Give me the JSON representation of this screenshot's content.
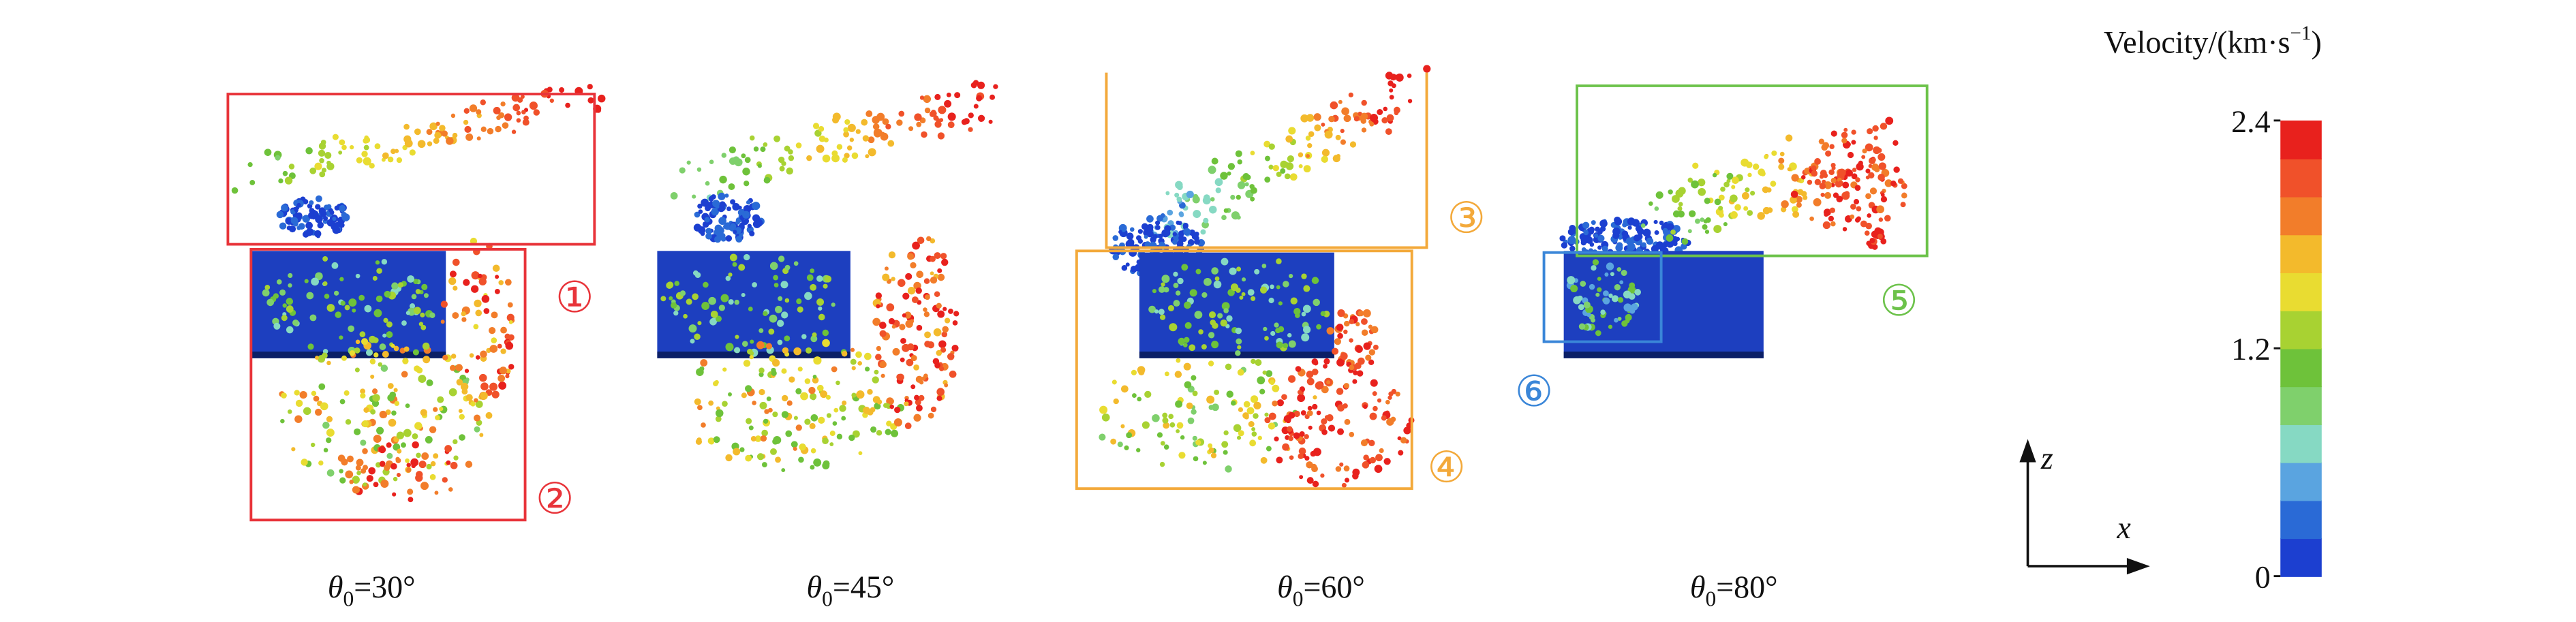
{
  "panels": [
    {
      "title": {
        "symbol": "θ",
        "subscript": "0",
        "rest": "=30°"
      },
      "regions": [
        {
          "label": "①",
          "color": "#e8343a"
        },
        {
          "label": "②",
          "color": "#e8343a"
        }
      ]
    },
    {
      "title": {
        "symbol": "θ",
        "subscript": "0",
        "rest": "=45°"
      },
      "regions": []
    },
    {
      "title": {
        "symbol": "θ",
        "subscript": "0",
        "rest": "=60°"
      },
      "regions": [
        {
          "label": "③",
          "color": "#f3a93a"
        },
        {
          "label": "④",
          "color": "#f3a93a"
        }
      ]
    },
    {
      "title": {
        "symbol": "θ",
        "subscript": "0",
        "rest": "=80°"
      },
      "regions": [
        {
          "label": "⑤",
          "color": "#6cc24a"
        },
        {
          "label": "⑥",
          "color": "#3a86d8"
        }
      ]
    }
  ],
  "axes": {
    "vertical": "z",
    "horizontal": "x"
  },
  "colorbar": {
    "title": "Velocity/(km·s",
    "title_exponent": "−1",
    "title_end": ")",
    "lim": [
      0,
      2.4
    ],
    "ticks": [
      0,
      1.2,
      2.4
    ],
    "colors": [
      "#1c3fd0",
      "#2a6ad6",
      "#5aa4e0",
      "#86d9c3",
      "#7fd06c",
      "#6ec23a",
      "#a8d232",
      "#e9dc31",
      "#f3ba2c",
      "#f27d2a",
      "#f0512a",
      "#e8211d"
    ]
  }
}
